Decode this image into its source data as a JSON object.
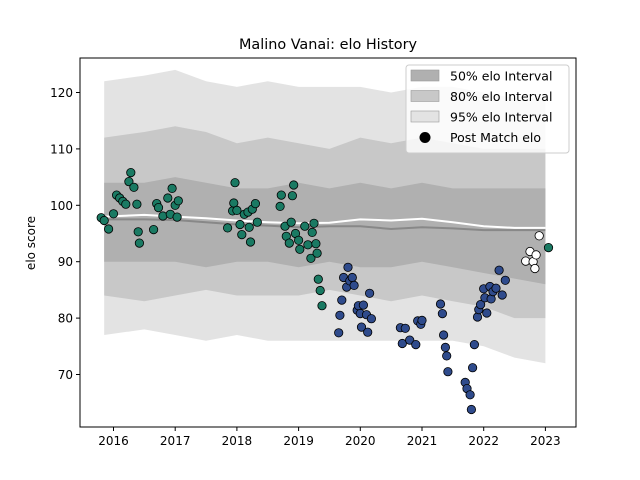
{
  "chart_data": {
    "type": "scatter",
    "title": "Malino Vanai: elo History",
    "xlabel": "",
    "ylabel": "elo score",
    "xlim": [
      2015.5,
      2023.38
    ],
    "ylim": [
      61,
      127
    ],
    "x_ticks": [
      "2016",
      "2017",
      "2018",
      "2019",
      "2020",
      "2021",
      "2022",
      "2023"
    ],
    "y_ticks": [
      "70",
      "80",
      "90",
      "100",
      "110",
      "120"
    ],
    "legend_position": "top-right",
    "legend": [
      {
        "label": "50% elo Interval",
        "color": "#b0b0b0",
        "kind": "patch"
      },
      {
        "label": "80% elo Interval",
        "color": "#c8c8c8",
        "kind": "patch"
      },
      {
        "label": "95% elo Interval",
        "color": "#e3e3e3",
        "kind": "patch"
      },
      {
        "label": "Post Match elo",
        "color": "#000000",
        "kind": "marker"
      }
    ],
    "colors": {
      "green": "#1a7a63",
      "blue": "#2f4b8c",
      "white": "#ffffff",
      "mean_line": "#888888",
      "current_line": "#ffffff"
    },
    "bands": {
      "x": [
        2015.85,
        2016.5,
        2017.0,
        2017.5,
        2018.0,
        2018.5,
        2019.0,
        2019.5,
        2020.0,
        2020.5,
        2021.0,
        2021.5,
        2022.0,
        2022.5,
        2023.0
      ],
      "p95_upper": [
        122,
        123,
        124,
        122,
        121,
        122,
        121,
        121,
        121,
        120,
        121,
        121,
        120,
        119,
        119
      ],
      "p95_lower": [
        77,
        78,
        77,
        76,
        77,
        76,
        76,
        76,
        76,
        76,
        76,
        76,
        75,
        73,
        72
      ],
      "p80_upper": [
        112,
        113,
        114,
        113,
        111,
        112,
        111,
        110,
        112,
        111,
        112,
        111,
        110,
        110,
        110
      ],
      "p80_lower": [
        84,
        83,
        84,
        85,
        84,
        84,
        84,
        85,
        84,
        83,
        84,
        83,
        82,
        80,
        80
      ],
      "p50_upper": [
        104,
        104,
        105,
        104,
        103,
        103,
        104,
        103,
        104,
        103,
        104,
        103,
        103,
        103,
        103
      ],
      "p50_lower": [
        90,
        90,
        90,
        89,
        90,
        90,
        89,
        90,
        89,
        89,
        90,
        89,
        88,
        87,
        86
      ],
      "mean": [
        97.5,
        97.5,
        97.4,
        97.0,
        96.6,
        96.4,
        96.1,
        96.3,
        96.3,
        95.8,
        96.1,
        95.9,
        95.6,
        95.6,
        95.6
      ],
      "current": [
        98.0,
        98.3,
        98.0,
        97.7,
        97.3,
        97.0,
        96.8,
        96.9,
        97.5,
        97.3,
        97.6,
        97.0,
        96.3,
        96.0,
        96.0
      ]
    },
    "series": [
      {
        "color": "green",
        "points": [
          [
            2015.8,
            97.8
          ],
          [
            2015.85,
            97.3
          ],
          [
            2015.92,
            95.8
          ],
          [
            2016.0,
            98.5
          ],
          [
            2016.05,
            101.8
          ],
          [
            2016.1,
            101.3
          ],
          [
            2016.15,
            100.7
          ],
          [
            2016.2,
            100.2
          ],
          [
            2016.25,
            104.2
          ],
          [
            2016.28,
            105.8
          ],
          [
            2016.33,
            103.2
          ],
          [
            2016.38,
            100.2
          ],
          [
            2016.4,
            95.3
          ],
          [
            2016.42,
            93.3
          ],
          [
            2016.65,
            95.7
          ],
          [
            2016.7,
            100.3
          ],
          [
            2016.73,
            99.6
          ],
          [
            2016.8,
            98.1
          ],
          [
            2016.88,
            101.3
          ],
          [
            2016.92,
            98.4
          ],
          [
            2016.95,
            103.0
          ],
          [
            2017.0,
            100.0
          ],
          [
            2017.05,
            100.8
          ],
          [
            2017.03,
            97.9
          ],
          [
            2017.85,
            96.0
          ],
          [
            2017.93,
            99.0
          ],
          [
            2017.95,
            100.4
          ],
          [
            2017.97,
            104.0
          ],
          [
            2018.0,
            99.1
          ],
          [
            2018.05,
            96.6
          ],
          [
            2018.08,
            94.8
          ],
          [
            2018.12,
            98.4
          ],
          [
            2018.18,
            98.8
          ],
          [
            2018.2,
            96.1
          ],
          [
            2018.22,
            93.5
          ],
          [
            2018.25,
            99.3
          ],
          [
            2018.3,
            100.3
          ],
          [
            2018.33,
            97.0
          ],
          [
            2018.7,
            99.8
          ],
          [
            2018.72,
            101.8
          ],
          [
            2018.78,
            96.3
          ],
          [
            2018.8,
            94.5
          ],
          [
            2018.85,
            93.3
          ],
          [
            2018.88,
            97.0
          ],
          [
            2018.9,
            101.7
          ],
          [
            2018.92,
            103.6
          ],
          [
            2018.95,
            95.0
          ],
          [
            2019.0,
            93.8
          ],
          [
            2019.02,
            92.2
          ],
          [
            2019.1,
            96.3
          ],
          [
            2019.15,
            93.0
          ],
          [
            2019.2,
            90.6
          ],
          [
            2019.22,
            95.2
          ],
          [
            2019.25,
            96.8
          ],
          [
            2019.28,
            93.2
          ],
          [
            2019.3,
            91.5
          ],
          [
            2019.32,
            86.9
          ],
          [
            2019.35,
            84.9
          ],
          [
            2019.38,
            82.2
          ]
        ]
      },
      {
        "color": "blue",
        "points": [
          [
            2019.65,
            77.4
          ],
          [
            2019.67,
            80.5
          ],
          [
            2019.7,
            83.2
          ],
          [
            2019.73,
            87.2
          ],
          [
            2019.78,
            85.5
          ],
          [
            2019.8,
            89.0
          ],
          [
            2019.83,
            86.6
          ],
          [
            2019.87,
            87.2
          ],
          [
            2019.9,
            85.8
          ],
          [
            2019.95,
            81.4
          ],
          [
            2019.97,
            82.2
          ],
          [
            2020.0,
            80.8
          ],
          [
            2020.02,
            78.4
          ],
          [
            2020.05,
            82.3
          ],
          [
            2020.1,
            80.6
          ],
          [
            2020.12,
            77.5
          ],
          [
            2020.15,
            84.4
          ],
          [
            2020.18,
            79.9
          ],
          [
            2020.65,
            78.3
          ],
          [
            2020.68,
            75.5
          ],
          [
            2020.73,
            78.2
          ],
          [
            2020.8,
            76.1
          ],
          [
            2020.9,
            75.3
          ],
          [
            2020.93,
            79.5
          ],
          [
            2020.98,
            78.9
          ],
          [
            2021.0,
            79.6
          ],
          [
            2021.3,
            82.5
          ],
          [
            2021.33,
            80.8
          ],
          [
            2021.35,
            77.0
          ],
          [
            2021.38,
            74.8
          ],
          [
            2021.4,
            73.3
          ],
          [
            2021.42,
            70.5
          ],
          [
            2021.7,
            68.6
          ],
          [
            2021.73,
            67.5
          ],
          [
            2021.78,
            66.4
          ],
          [
            2021.8,
            63.8
          ],
          [
            2021.82,
            71.2
          ],
          [
            2021.85,
            75.3
          ],
          [
            2021.9,
            80.2
          ],
          [
            2021.92,
            81.5
          ],
          [
            2021.95,
            82.4
          ],
          [
            2022.0,
            85.2
          ],
          [
            2022.02,
            83.6
          ],
          [
            2022.05,
            80.9
          ],
          [
            2022.1,
            85.6
          ],
          [
            2022.12,
            83.4
          ],
          [
            2022.15,
            84.7
          ],
          [
            2022.2,
            85.3
          ],
          [
            2022.25,
            88.5
          ],
          [
            2022.3,
            84.1
          ],
          [
            2022.35,
            86.7
          ]
        ]
      },
      {
        "color": "white",
        "points": [
          [
            2022.68,
            90.1
          ],
          [
            2022.75,
            91.8
          ],
          [
            2022.8,
            90.0
          ],
          [
            2022.83,
            88.8
          ],
          [
            2022.85,
            91.2
          ],
          [
            2022.9,
            94.6
          ]
        ]
      },
      {
        "color": "green",
        "points": [
          [
            2023.05,
            92.5
          ]
        ]
      }
    ]
  }
}
